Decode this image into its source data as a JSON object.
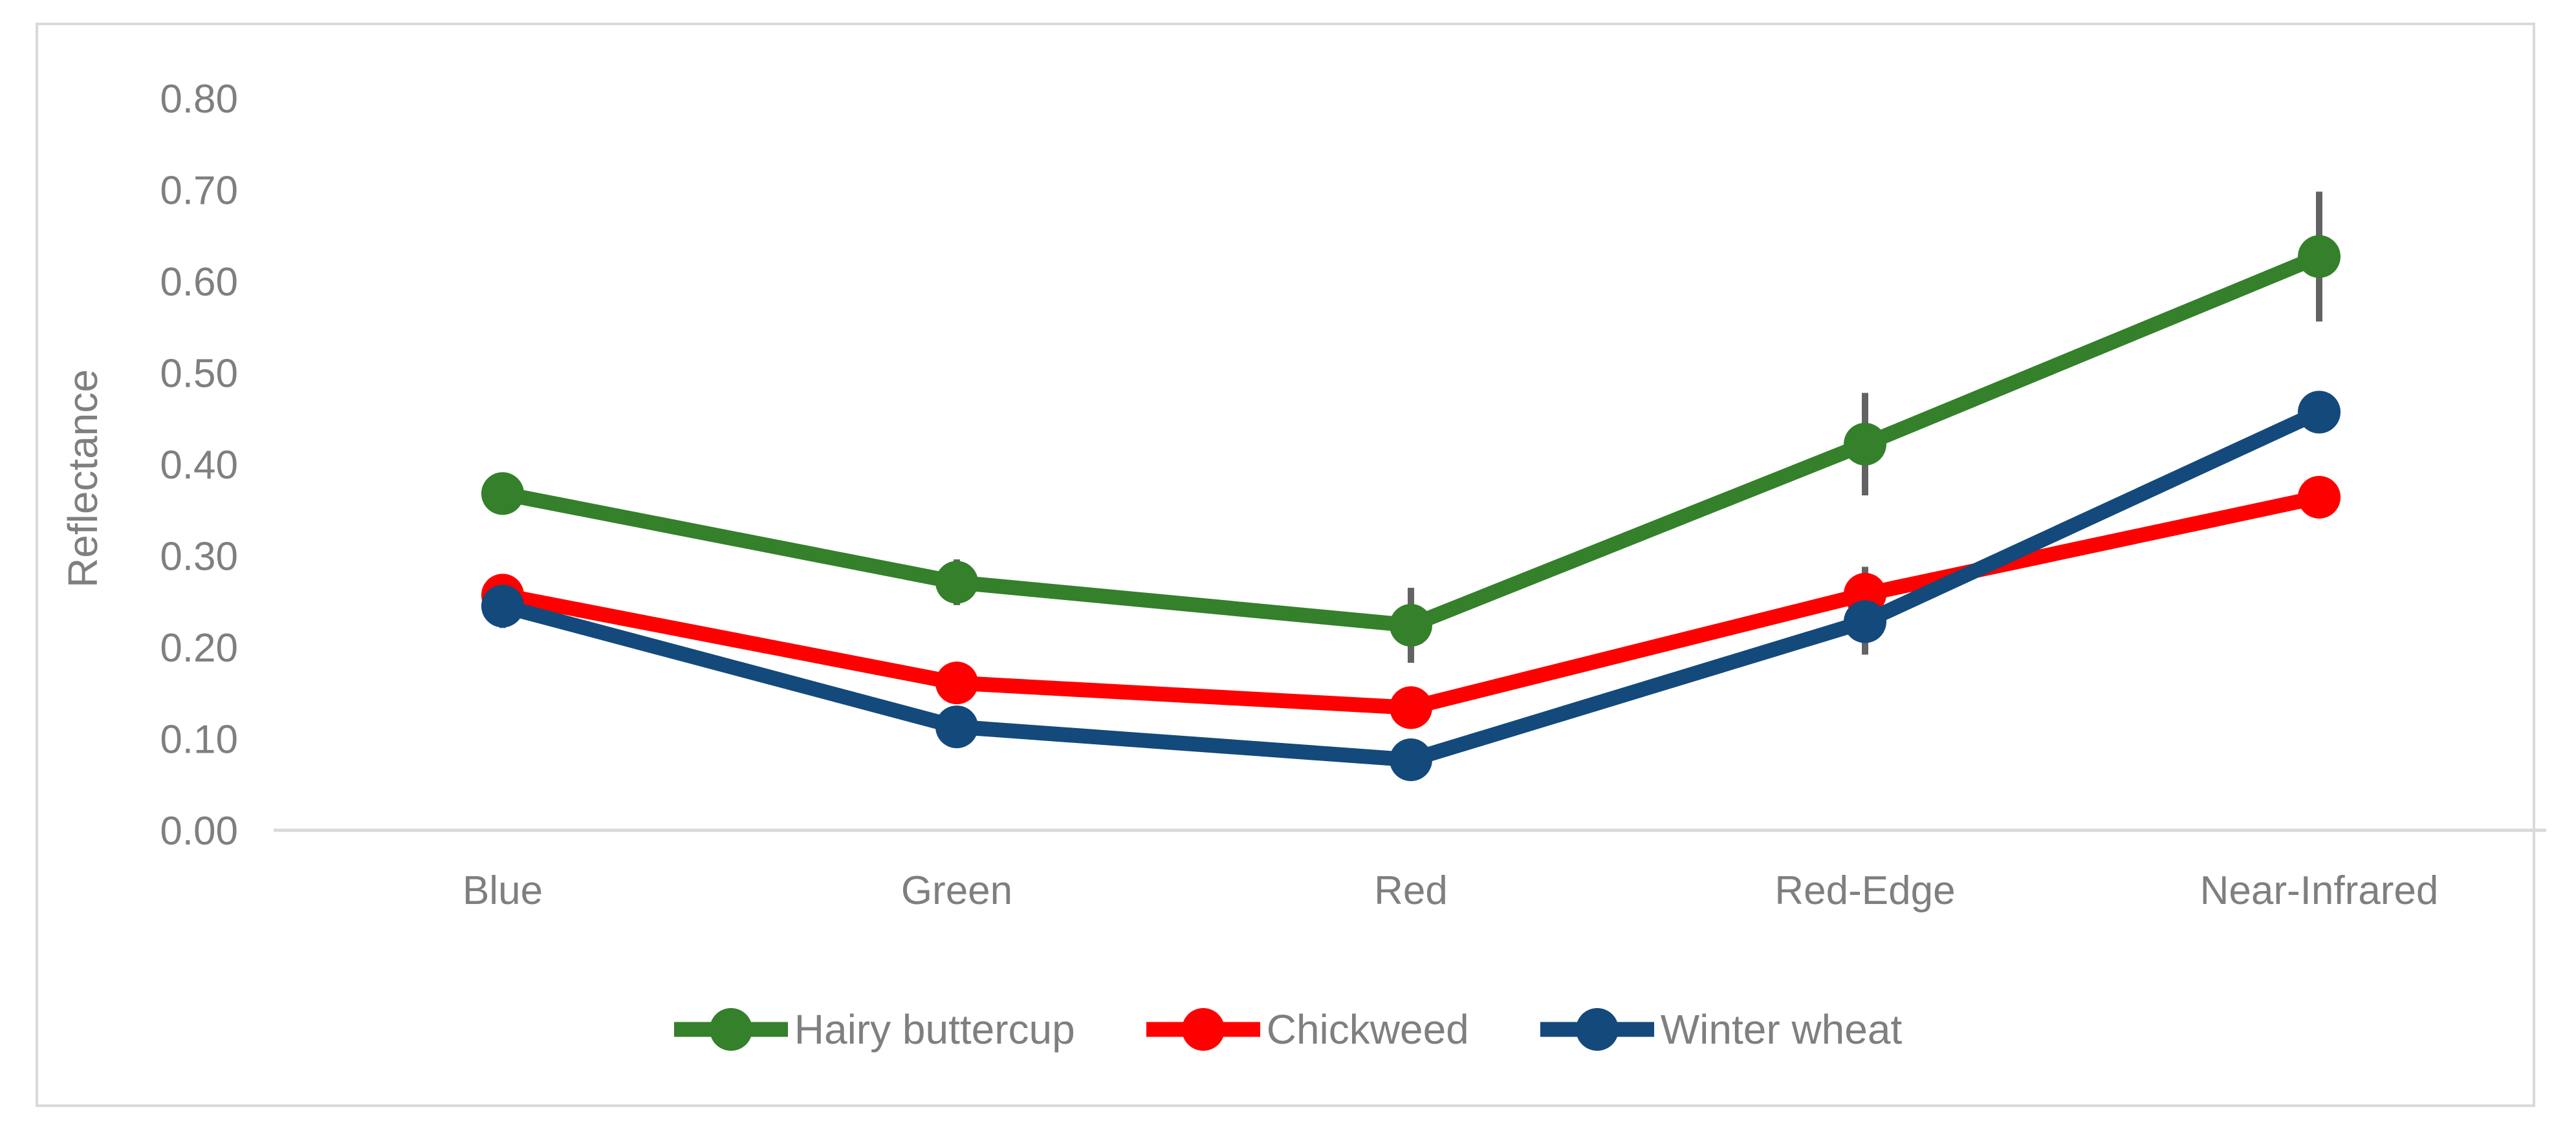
{
  "figure": {
    "background": "#FFFFFF",
    "border_color": "#D9D9D9"
  },
  "chart_data": {
    "type": "line",
    "title": "",
    "categories": [
      "Blue",
      "Green",
      "Red",
      "Red-Edge",
      "Near-Infrared"
    ],
    "xlabel": "",
    "ylabel": "Reflectance",
    "ylim": [
      0.0,
      0.8
    ],
    "ytick_step": 0.1,
    "ytick_labels": [
      "0.00",
      "0.10",
      "0.20",
      "0.30",
      "0.40",
      "0.50",
      "0.60",
      "0.70",
      "0.80"
    ],
    "grid": false,
    "legend_position": "bottom-center",
    "series": [
      {
        "name": "Hairy buttercup",
        "color": "#34802B",
        "values": [
          0.368,
          0.271,
          0.224,
          0.422,
          0.627
        ],
        "error": [
          null,
          0.025,
          0.041,
          0.056,
          0.071
        ]
      },
      {
        "name": "Chickweed",
        "color": "#FF0000",
        "values": [
          0.257,
          0.161,
          0.134,
          0.258,
          0.364
        ],
        "error": [
          0.02,
          null,
          0.021,
          0.03,
          0.019
        ]
      },
      {
        "name": "Winter wheat",
        "color": "#14497B",
        "values": [
          0.245,
          0.113,
          0.077,
          0.228,
          0.457
        ],
        "error": [
          0.024,
          null,
          null,
          0.036,
          null
        ]
      }
    ],
    "error_bar_color": "#636363",
    "axis_text_color": "#7F7F7F",
    "axis_line_color": "#D9D9D9"
  }
}
